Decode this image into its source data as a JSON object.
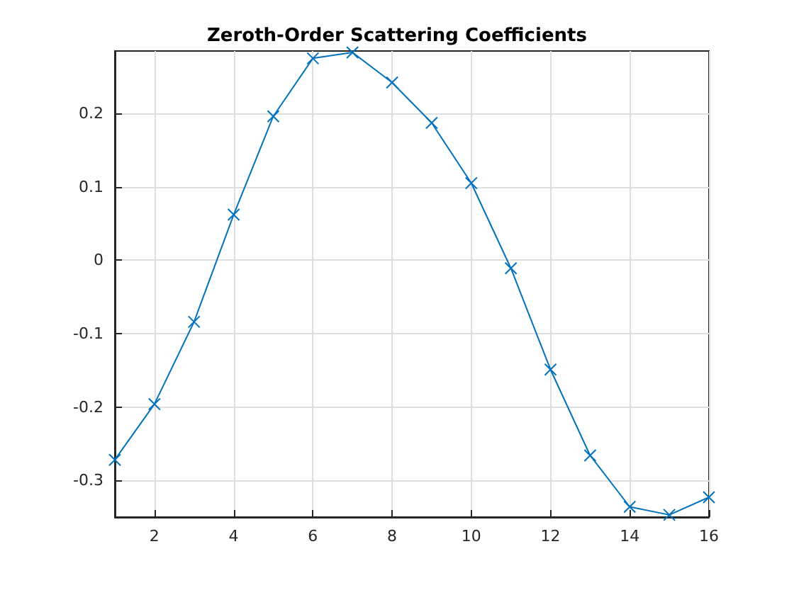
{
  "chart_data": {
    "type": "line",
    "title": "Zeroth-Order Scattering Coefficients",
    "x": [
      1,
      2,
      3,
      4,
      5,
      6,
      7,
      8,
      9,
      10,
      11,
      12,
      13,
      14,
      15,
      16
    ],
    "series": [
      {
        "color": "#0072bd",
        "values": [
          -0.272,
          -0.196,
          -0.084,
          0.062,
          0.196,
          0.275,
          0.283,
          0.242,
          0.187,
          0.105,
          -0.011,
          -0.149,
          -0.266,
          -0.336,
          -0.347,
          -0.323
        ]
      }
    ],
    "xlim": [
      1,
      16
    ],
    "xticks": [
      2,
      4,
      6,
      8,
      10,
      12,
      14,
      16
    ],
    "ylim": [
      -0.35,
      0.285
    ],
    "yticks": [
      -0.3,
      -0.2,
      -0.1,
      0,
      0.1,
      0.2
    ],
    "grid": true,
    "marker": "cross",
    "line_style": "solid"
  }
}
